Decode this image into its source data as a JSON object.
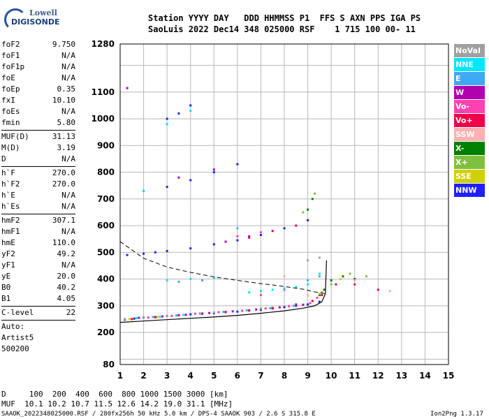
{
  "logo": {
    "line1": "Lowell",
    "line2": "DIGISONDE"
  },
  "header": {
    "line1": "Station YYYY DAY   DDD HHMMSS P1  FFS S AXN PPS IGA PS",
    "line2": "SaoLuis 2022 Dec14 348 025000 RSF    1 715 100 00- 11"
  },
  "params": {
    "group1": [
      {
        "k": "foF2",
        "v": "9.750"
      },
      {
        "k": "foF1",
        "v": "N/A"
      },
      {
        "k": "foF1p",
        "v": "N/A"
      },
      {
        "k": "foE",
        "v": "N/A"
      },
      {
        "k": "foEp",
        "v": "0.35"
      },
      {
        "k": "fxI",
        "v": "10.10"
      },
      {
        "k": "foEs",
        "v": "N/A"
      },
      {
        "k": "fmin",
        "v": "5.80"
      }
    ],
    "group2": [
      {
        "k": "MUF(D)",
        "v": "31.13"
      },
      {
        "k": "M(D)",
        "v": "3.19"
      },
      {
        "k": "D",
        "v": "N/A"
      }
    ],
    "group3": [
      {
        "k": "h`F",
        "v": "270.0"
      },
      {
        "k": "h`F2",
        "v": "270.0"
      },
      {
        "k": "h`E",
        "v": "N/A"
      },
      {
        "k": "h`Es",
        "v": "N/A"
      }
    ],
    "group4": [
      {
        "k": "hmF2",
        "v": "307.1"
      },
      {
        "k": "hmF1",
        "v": "N/A"
      },
      {
        "k": "hmE",
        "v": "110.0"
      },
      {
        "k": "yF2",
        "v": "49.2"
      },
      {
        "k": "yF1",
        "v": "N/A"
      },
      {
        "k": "yE",
        "v": "20.0"
      },
      {
        "k": "B0",
        "v": "40.2"
      },
      {
        "k": "B1",
        "v": "4.05"
      }
    ],
    "group5": [
      {
        "k": "C-level",
        "v": "22"
      }
    ],
    "auto": [
      "Auto:",
      "Artist5",
      "500200"
    ]
  },
  "legend": [
    {
      "label": "NoVal",
      "color": "#a0a0a0"
    },
    {
      "label": "NNE",
      "color": "#00e6ff"
    },
    {
      "label": "E",
      "color": "#3fa9f5"
    },
    {
      "label": "W",
      "color": "#b000b0"
    },
    {
      "label": "Vo-",
      "color": "#ff40b0"
    },
    {
      "label": "Vo+",
      "color": "#f00048"
    },
    {
      "label": "SSW",
      "color": "#ffb0b0"
    },
    {
      "label": "X-",
      "color": "#008000"
    },
    {
      "label": "X+",
      "color": "#80c040"
    },
    {
      "label": "SSE",
      "color": "#d0d000"
    },
    {
      "label": "NNW",
      "color": "#2020ff"
    }
  ],
  "footer": {
    "line1": "D     100  200  400  600  800 1000 1500 3000 [km]",
    "line2": "MUF  10.1 10.2 10.7 11.5 12.6 14.2 19.0 31.1 [MHz]",
    "line3_left": "SAAOK_2022348025000.RSF / 280fx256h 50 kHz 5.0 km / DPS-4 SAAOK 903 / 2.6 S 315.8 E",
    "line3_right": "Ion2Png 1.3.17"
  },
  "chart_data": {
    "type": "scatter",
    "title": "",
    "xlabel": "",
    "ylabel": "",
    "xlim": [
      1,
      15
    ],
    "ylim": [
      80,
      1280
    ],
    "x_ticks": [
      1,
      2,
      3,
      4,
      5,
      6,
      7,
      8,
      9,
      10,
      11,
      12,
      13,
      14,
      15
    ],
    "y_ticks": [
      80,
      200,
      300,
      400,
      500,
      600,
      700,
      800,
      900,
      1000,
      1100,
      1280
    ],
    "grid": true,
    "series": [
      {
        "color": "#2020ff",
        "points": [
          [
            1.2,
            248
          ],
          [
            1.6,
            252
          ],
          [
            2.0,
            256
          ],
          [
            2.5,
            258
          ],
          [
            3.0,
            262
          ],
          [
            3.5,
            265
          ],
          [
            4.0,
            268
          ],
          [
            4.5,
            270
          ],
          [
            5.0,
            272
          ],
          [
            5.5,
            276
          ],
          [
            6.0,
            278
          ],
          [
            6.5,
            282
          ],
          [
            7.0,
            285
          ],
          [
            7.5,
            290
          ],
          [
            8.0,
            295
          ],
          [
            8.5,
            300
          ],
          [
            9.0,
            305
          ],
          [
            9.5,
            315
          ],
          [
            1.3,
            490
          ],
          [
            2.0,
            495
          ],
          [
            2.5,
            500
          ],
          [
            3.0,
            505
          ],
          [
            4.0,
            515
          ],
          [
            5.0,
            530
          ],
          [
            6.0,
            545
          ],
          [
            7.0,
            565
          ],
          [
            8.0,
            590
          ],
          [
            9.0,
            620
          ],
          [
            2.0,
            730
          ],
          [
            3.0,
            745
          ],
          [
            4.0,
            770
          ],
          [
            5.0,
            800
          ],
          [
            6.0,
            830
          ],
          [
            3.0,
            1000
          ],
          [
            3.5,
            1020
          ],
          [
            4.0,
            1050
          ]
        ]
      },
      {
        "color": "#f00048",
        "points": [
          [
            1.5,
            250
          ],
          [
            2.5,
            257
          ],
          [
            3.5,
            264
          ],
          [
            4.5,
            271
          ],
          [
            5.5,
            277
          ],
          [
            6.5,
            283
          ],
          [
            7.5,
            292
          ],
          [
            8.5,
            305
          ],
          [
            9.2,
            318
          ],
          [
            9.6,
            340
          ],
          [
            10.2,
            380
          ],
          [
            11.0,
            380
          ],
          [
            12.0,
            360
          ],
          [
            6.5,
            560
          ],
          [
            7.5,
            580
          ],
          [
            8.5,
            600
          ]
        ]
      },
      {
        "color": "#ff40b0",
        "points": [
          [
            2.2,
            256
          ],
          [
            3.2,
            262
          ],
          [
            4.2,
            270
          ],
          [
            5.2,
            276
          ],
          [
            6.2,
            281
          ],
          [
            7.2,
            290
          ],
          [
            8.2,
            298
          ],
          [
            9.1,
            310
          ],
          [
            9.4,
            330
          ],
          [
            7.0,
            340
          ],
          [
            8.0,
            360
          ],
          [
            6.0,
            560
          ],
          [
            7.0,
            575
          ]
        ]
      },
      {
        "color": "#b000b0",
        "points": [
          [
            1.8,
            255
          ],
          [
            2.8,
            260
          ],
          [
            3.8,
            266
          ],
          [
            4.8,
            273
          ],
          [
            5.8,
            279
          ],
          [
            6.8,
            286
          ],
          [
            7.8,
            294
          ],
          [
            8.8,
            304
          ],
          [
            1.3,
            1115
          ],
          [
            5.5,
            540
          ],
          [
            6.5,
            555
          ],
          [
            3.5,
            780
          ],
          [
            5.0,
            810
          ]
        ]
      },
      {
        "color": "#00e6ff",
        "points": [
          [
            1.7,
            254
          ],
          [
            2.7,
            259
          ],
          [
            3.7,
            266
          ],
          [
            6.5,
            350
          ],
          [
            7.0,
            355
          ],
          [
            7.5,
            360
          ],
          [
            8.0,
            365
          ],
          [
            8.5,
            370
          ],
          [
            9.0,
            380
          ],
          [
            9.5,
            420
          ],
          [
            3.0,
            395
          ],
          [
            4.0,
            400
          ],
          [
            5.0,
            405
          ],
          [
            2.0,
            730
          ],
          [
            3.0,
            980
          ],
          [
            4.0,
            1030
          ]
        ]
      },
      {
        "color": "#3fa9f5",
        "points": [
          [
            2.4,
            258
          ],
          [
            3.4,
            264
          ],
          [
            4.4,
            271
          ],
          [
            5.4,
            277
          ],
          [
            6.4,
            283
          ],
          [
            7.4,
            291
          ],
          [
            8.4,
            300
          ],
          [
            9.0,
            395
          ],
          [
            9.5,
            410
          ],
          [
            3.5,
            390
          ],
          [
            4.5,
            395
          ],
          [
            6.0,
            590
          ]
        ]
      },
      {
        "color": "#008000",
        "points": [
          [
            9.5,
            340
          ],
          [
            9.7,
            360
          ],
          [
            10.0,
            395
          ],
          [
            10.5,
            410
          ],
          [
            11.0,
            400
          ],
          [
            9.0,
            660
          ],
          [
            9.2,
            700
          ]
        ]
      },
      {
        "color": "#80c040",
        "points": [
          [
            9.6,
            350
          ],
          [
            10.0,
            380
          ],
          [
            10.8,
            420
          ],
          [
            11.5,
            410
          ],
          [
            8.8,
            650
          ],
          [
            9.3,
            720
          ]
        ]
      },
      {
        "color": "#d0d000",
        "points": [
          [
            1.4,
            250
          ],
          [
            2.6,
            258
          ],
          [
            9.5,
            345
          ],
          [
            10.4,
            400
          ]
        ]
      },
      {
        "color": "#ffb0b0",
        "points": [
          [
            9.0,
            340
          ],
          [
            11.0,
            395
          ],
          [
            12.5,
            355
          ],
          [
            8.0,
            410
          ]
        ]
      },
      {
        "color": "#a0a0a0",
        "points": [
          [
            1.2,
            250
          ],
          [
            2.0,
            255
          ],
          [
            3.0,
            262
          ],
          [
            5.0,
            275
          ],
          [
            7.0,
            290
          ],
          [
            9.0,
            470
          ],
          [
            9.5,
            480
          ]
        ]
      }
    ],
    "trace_hmf2_profile": [
      [
        1.0,
        540
      ],
      [
        2.0,
        478
      ],
      [
        3.0,
        445
      ],
      [
        4.0,
        425
      ],
      [
        5.0,
        408
      ],
      [
        6.0,
        395
      ],
      [
        7.0,
        383
      ],
      [
        8.0,
        372
      ],
      [
        8.8,
        362
      ],
      [
        9.3,
        352
      ],
      [
        9.75,
        345
      ]
    ],
    "trace_virtual_height": [
      [
        1.0,
        238
      ],
      [
        2.0,
        243
      ],
      [
        3.0,
        248
      ],
      [
        4.0,
        253
      ],
      [
        5.0,
        258
      ],
      [
        6.0,
        264
      ],
      [
        7.0,
        272
      ],
      [
        8.0,
        281
      ],
      [
        8.8,
        291
      ],
      [
        9.3,
        300
      ],
      [
        9.6,
        315
      ],
      [
        9.75,
        345
      ],
      [
        9.8,
        470
      ]
    ]
  }
}
